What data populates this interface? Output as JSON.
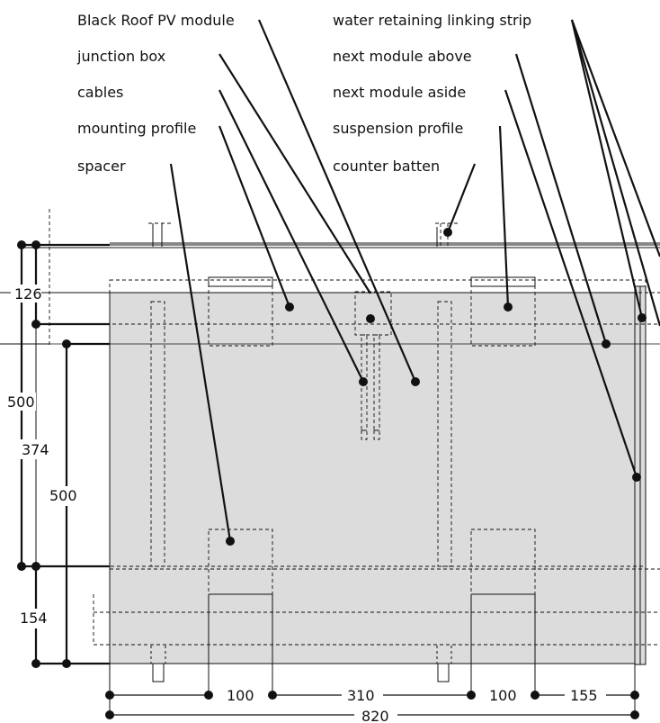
{
  "labels": {
    "pv_module": "Black Roof PV module",
    "junction_box": "junction box",
    "cables": "cables",
    "mounting_profile": "mounting profile",
    "spacer": "spacer",
    "linking_strip": "water retaining linking strip",
    "module_above": "next module above",
    "module_aside": "next module aside",
    "suspension_profile": "suspension profile",
    "counter_batten": "counter batten"
  },
  "dimensions": {
    "left_126": "126",
    "left_500_outer": "500",
    "left_374": "374",
    "left_500_inner": "500",
    "left_154": "154",
    "bottom_100_a": "100",
    "bottom_310": "310",
    "bottom_100_b": "100",
    "bottom_155": "155",
    "bottom_820": "820"
  },
  "colors": {
    "module_fill": "#dcdcdc",
    "line": "#111111"
  }
}
